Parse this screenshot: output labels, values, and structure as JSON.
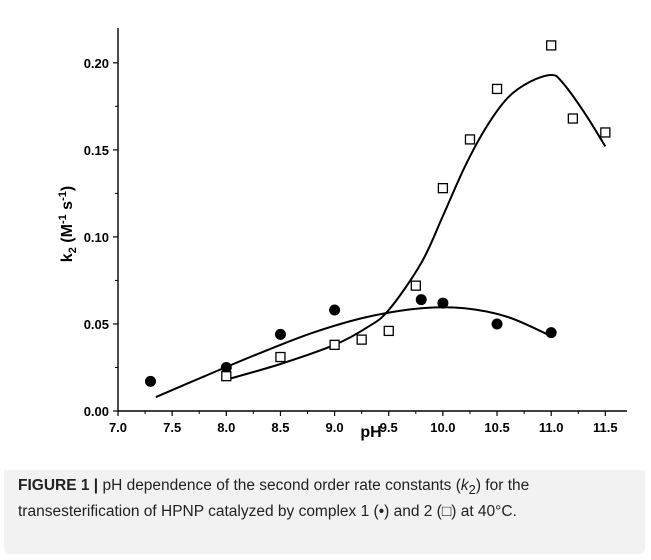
{
  "caption": {
    "label": "FIGURE 1 |",
    "text_1": " pH dependence of the second order rate constants (",
    "k_symbol": "k",
    "k_sub": "2",
    "text_2": ") for the transesterification of HPNP catalyzed by complex 1 (",
    "marker_1": "•",
    "text_3": ") and 2 (",
    "marker_2": "□",
    "text_4": ") at 40°C."
  },
  "chart_data": {
    "type": "scatter",
    "xlabel": "pH",
    "ylabel": "k2 (M-1 s-1)",
    "xlim": [
      7.0,
      11.7
    ],
    "ylim": [
      0.0,
      0.22
    ],
    "x_ticks": [
      "7.0",
      "7.5",
      "8.0",
      "8.5",
      "9.0",
      "9.5",
      "10.0",
      "10.5",
      "11.0",
      "11.5"
    ],
    "y_ticks": [
      "0.00",
      "0.05",
      "0.10",
      "0.15",
      "0.20"
    ],
    "grid": false,
    "series": [
      {
        "marker": "filled-circle",
        "color": "#000000",
        "points": [
          [
            7.3,
            0.017
          ],
          [
            8.0,
            0.025
          ],
          [
            8.5,
            0.044
          ],
          [
            9.0,
            0.058
          ],
          [
            9.8,
            0.064
          ],
          [
            10.0,
            0.062
          ],
          [
            10.5,
            0.05
          ],
          [
            11.0,
            0.045
          ]
        ],
        "fit": [
          [
            7.35,
            0.008
          ],
          [
            7.8,
            0.02
          ],
          [
            8.3,
            0.033
          ],
          [
            8.8,
            0.045
          ],
          [
            9.3,
            0.054
          ],
          [
            9.8,
            0.059
          ],
          [
            10.2,
            0.059
          ],
          [
            10.6,
            0.054
          ],
          [
            11.0,
            0.043
          ]
        ]
      },
      {
        "marker": "open-square",
        "color": "#000000",
        "points": [
          [
            8.0,
            0.02
          ],
          [
            8.5,
            0.031
          ],
          [
            9.0,
            0.038
          ],
          [
            9.25,
            0.041
          ],
          [
            9.5,
            0.046
          ],
          [
            9.75,
            0.072
          ],
          [
            10.0,
            0.128
          ],
          [
            10.25,
            0.156
          ],
          [
            10.5,
            0.185
          ],
          [
            11.0,
            0.21
          ],
          [
            11.2,
            0.168
          ],
          [
            11.5,
            0.16
          ]
        ],
        "fit": [
          [
            8.0,
            0.018
          ],
          [
            8.5,
            0.027
          ],
          [
            9.0,
            0.038
          ],
          [
            9.3,
            0.048
          ],
          [
            9.5,
            0.058
          ],
          [
            9.8,
            0.085
          ],
          [
            10.0,
            0.112
          ],
          [
            10.2,
            0.14
          ],
          [
            10.4,
            0.163
          ],
          [
            10.6,
            0.18
          ],
          [
            10.8,
            0.189
          ],
          [
            11.0,
            0.193
          ],
          [
            11.1,
            0.189
          ],
          [
            11.3,
            0.172
          ],
          [
            11.5,
            0.152
          ]
        ]
      }
    ]
  }
}
